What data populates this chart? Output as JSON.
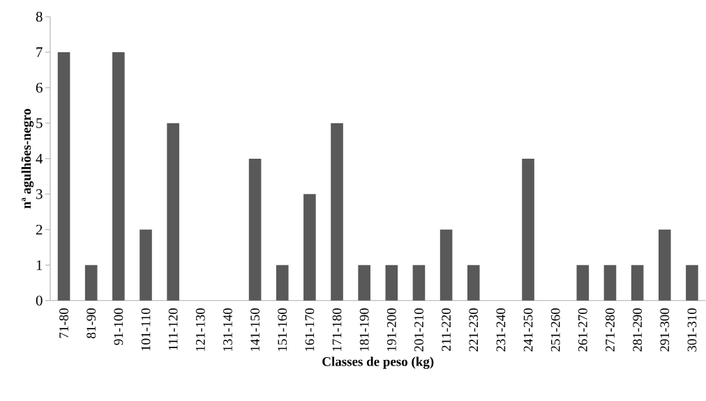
{
  "chart_data": {
    "type": "bar",
    "xlabel": "Classes de peso (kg)",
    "ylabel": "nª agulhões-negro",
    "categories": [
      "71-80",
      "81-90",
      "91-100",
      "101-110",
      "111-120",
      "121-130",
      "131-140",
      "141-150",
      "151-160",
      "161-170",
      "171-180",
      "181-190",
      "191-200",
      "201-210",
      "211-220",
      "221-230",
      "231-240",
      "241-250",
      "251-260",
      "261-270",
      "271-280",
      "281-290",
      "291-300",
      "301-310"
    ],
    "values": [
      7,
      1,
      7,
      2,
      5,
      0,
      0,
      4,
      1,
      3,
      5,
      1,
      1,
      1,
      2,
      1,
      0,
      4,
      0,
      1,
      1,
      1,
      2,
      1
    ],
    "color": "#595959",
    "ylim": [
      0,
      8
    ],
    "yticks": [
      0,
      1,
      2,
      3,
      4,
      5,
      6,
      7,
      8
    ]
  }
}
